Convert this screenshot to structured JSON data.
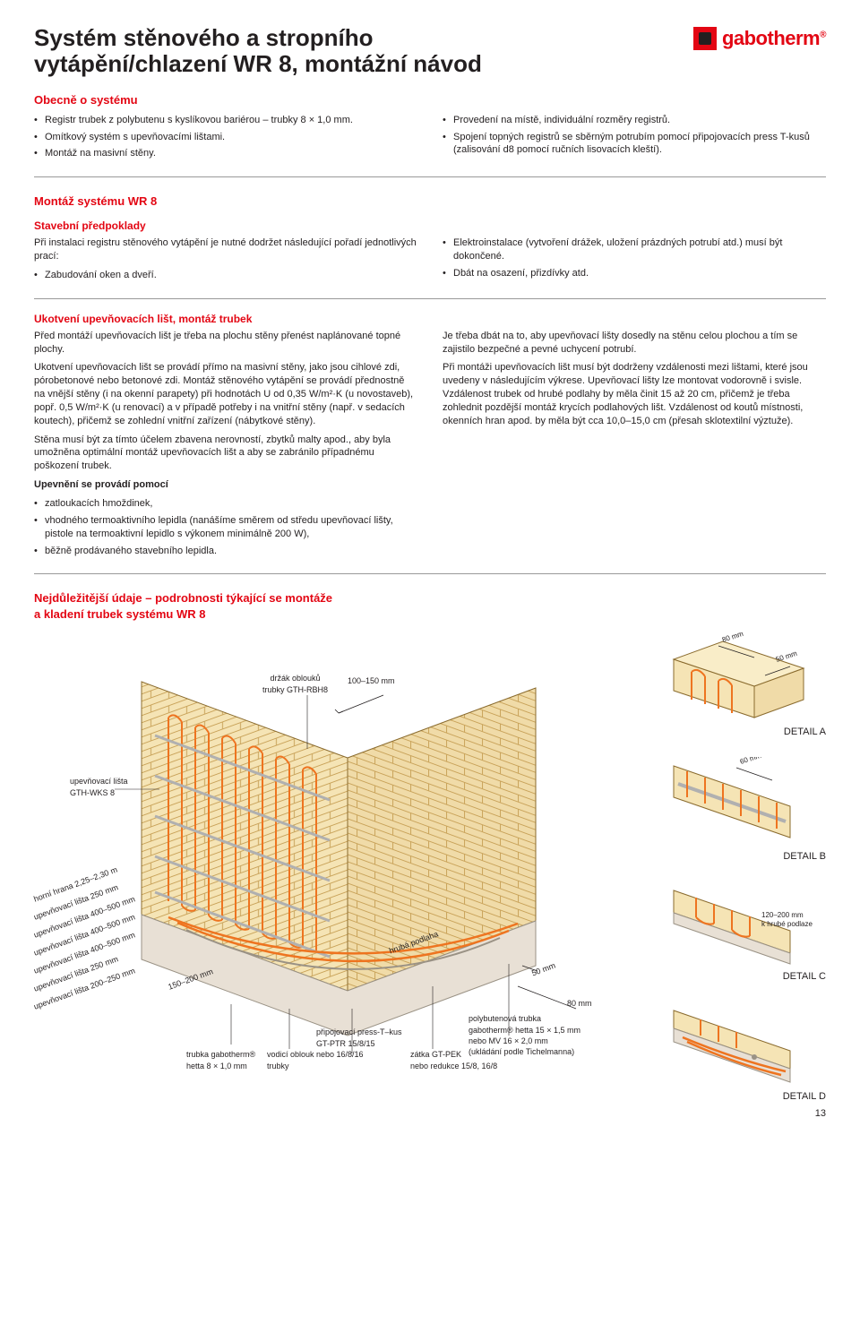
{
  "header": {
    "title_line1": "Systém stěnového a stropního",
    "title_line2": "vytápění/chlazení WR 8, montážní návod",
    "brand": "gabotherm",
    "brand_color": "#e30613"
  },
  "section_general": {
    "title": "Obecně o systému",
    "left_items": [
      "Registr trubek z polybutenu s kyslíkovou bariérou – trubky 8 × 1,0 mm.",
      "Omítkový systém s upevňovacími lištami.",
      "Montáž na masivní stěny."
    ],
    "right_items": [
      "Provedení na místě, individuální rozměry registrů.",
      "Spojení topných registrů se sběrným potrubím pomocí připojovacích press T-kusů (zalisování d8 pomocí ručních lisovacích kleští)."
    ]
  },
  "section_mount": {
    "title": "Montáž systému WR 8",
    "sub_title": "Stavební předpoklady",
    "intro": "Při instalaci registru stěnového vytápění je nutné dodržet následující pořadí jednotlivých prací:",
    "left_items": [
      "Zabudování oken a dveří."
    ],
    "right_items": [
      "Elektroinstalace (vytvoření drážek, uložení prázdných potrubí atd.) musí být dokončené.",
      "Dbát na osazení, přizdívky atd."
    ]
  },
  "section_anchor": {
    "title": "Ukotvení upevňovacích lišt, montáž trubek",
    "left_paras": [
      "Před montáží upevňovacích lišt je třeba na plochu stěny přenést naplánované topné plochy.",
      "Ukotvení upevňovacích lišt se provádí přímo na masivní stěny, jako jsou cihlové zdi, pórobetonové nebo betonové zdi. Montáž stěnového vytápění se provádí přednostně na vnější stěny (i na okenní parapety) při hodnotách U od 0,35 W/m²·K (u novostaveb), popř. 0,5 W/m²·K (u renovací) a v případě potřeby i na vnitřní stěny (např. v sedacích koutech), přičemž se zohlední vnitřní zařízení (nábytkové stěny).",
      "Stěna musí být za tímto účelem zbavena nerovností, zbytků malty apod., aby byla umožněna optimální montáž upevňovacích lišt a aby se zabránilo případnému poškození trubek."
    ],
    "fix_heading": "Upevnění se provádí pomocí",
    "fix_items": [
      "zatloukacích hmoždinek,",
      "vhodného termoaktivního lepidla (nanášíme směrem od středu upevňovací lišty, pistole na termoaktivní lepidlo s výkonem minimálně 200 W),",
      "běžně prodávaného stavebního lepidla."
    ],
    "right_paras": [
      "Je třeba dbát na to, aby upevňovací lišty dosedly na stěnu celou plochou a tím se zajistilo bezpečné a pevné uchycení potrubí.",
      "Při montáži upevňovacích lišt musí být dodrženy vzdálenosti mezi lištami, které jsou uvedeny v následujícím výkrese. Upevňovací lišty lze montovat vodorovně i svisle. Vzdálenost trubek od hrubé podlahy by měla činit 15 až 20 cm, přičemž je třeba zohlednit pozdější montáž krycích podlahových lišt. Vzdálenost od koutů místnosti, okenních hran apod. by měla být cca 10,0–15,0 cm (přesah sklotextilní výztuže)."
    ]
  },
  "section_data": {
    "title_line1": "Nejdůležitější údaje – podrobnosti týkající se montáže",
    "title_line2": "a kladení trubek systému WR 8"
  },
  "diagram": {
    "callouts": {
      "c100_150": "100–150 mm",
      "holder": "držák oblouků\ntrubky GTH-RBH8",
      "strip": "upevňovací lišta\nGTH-WKS 8",
      "top_edge": "horní hrana 2,25–2,30 m",
      "strip_250_1": "upevňovací lišta 250 mm",
      "strip_400_1": "upevňovací lišta 400–500 mm",
      "strip_400_2": "upevňovací lišta 400–500 mm",
      "strip_400_3": "upevňovací lišta 400–500 mm",
      "strip_250_2": "upevňovací lišta 250 mm",
      "strip_200": "upevňovací lišta 200–250 mm",
      "c150_200": "150–200 mm",
      "rough_floor": "hrubá podlaha",
      "pipe_gab": "trubka gabotherm®\nhetta 8 × 1,0 mm",
      "guide": "vodicí oblouk\ntrubky",
      "press_t": "připojovací press-T–kus\nGT-PTR 15/8/15\nnebo 16/8/16",
      "plug": "zátka GT-PEK\nnebo redukce 15/8, 16/8",
      "pb_pipe": "polybutenová trubka\ngabotherm® hetta 15 × 1,5 mm\nnebo MV 16 × 2,0 mm\n(ukládání podle Tichelmanna)",
      "c50mm": "50 mm",
      "c80mm_floor": "80 mm"
    },
    "details": {
      "a": {
        "label": "DETAIL A",
        "dim1": "80 mm",
        "dim2": "50 mm"
      },
      "b": {
        "label": "DETAIL B",
        "dim1": "60 mm"
      },
      "c": {
        "label": "DETAIL C"
      },
      "d": {
        "label": "DETAIL D",
        "dim1": "120–200 mm",
        "dim2": "k hrubé podlaze"
      }
    },
    "colors": {
      "wall_fill": "#f5e4b5",
      "wall_stroke": "#8a6b2e",
      "pipe": "#ee7420",
      "floor": "#e8e0d5",
      "gray": "#b0b0b0",
      "text": "#231f20"
    }
  },
  "page_number": "13"
}
